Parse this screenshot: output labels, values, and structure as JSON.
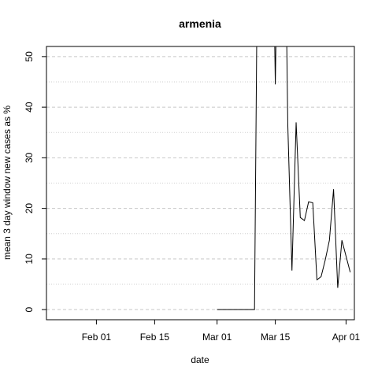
{
  "chart_data": {
    "type": "line",
    "title": "armenia",
    "xlabel": "date",
    "ylabel": "mean  3  day window new cases as %",
    "x_ticks": [
      "Feb 01",
      "Feb 15",
      "Mar 01",
      "Mar 15",
      "Apr 01"
    ],
    "y_ticks": [
      0,
      10,
      20,
      30,
      40,
      50
    ],
    "xlim": [
      "2020-01-20",
      "2020-04-03"
    ],
    "ylim": [
      -2,
      52
    ],
    "grid": true,
    "series": [
      {
        "points": [
          [
            "2020-03-01",
            0
          ],
          [
            "2020-03-02",
            0
          ],
          [
            "2020-03-03",
            0
          ],
          [
            "2020-03-04",
            0
          ],
          [
            "2020-03-05",
            0
          ],
          [
            "2020-03-06",
            0
          ],
          [
            "2020-03-07",
            0
          ],
          [
            "2020-03-08",
            0
          ],
          [
            "2020-03-09",
            0
          ],
          [
            "2020-03-10",
            0
          ],
          [
            "2020-03-11",
            100
          ],
          [
            "2020-03-14",
            100
          ],
          [
            "2020-03-15",
            44.5
          ],
          [
            "2020-03-16",
            100
          ],
          [
            "2020-03-17",
            100
          ],
          [
            "2020-03-18",
            36.5
          ],
          [
            "2020-03-19",
            7.7
          ],
          [
            "2020-03-20",
            37
          ],
          [
            "2020-03-21",
            18.2
          ],
          [
            "2020-03-22",
            17.6
          ],
          [
            "2020-03-23",
            21.3
          ],
          [
            "2020-03-24",
            21.1
          ],
          [
            "2020-03-25",
            5.9
          ],
          [
            "2020-03-26",
            6.5
          ],
          [
            "2020-03-27",
            9.8
          ],
          [
            "2020-03-28",
            13.7
          ],
          [
            "2020-03-29",
            23.8
          ],
          [
            "2020-03-30",
            4.3
          ],
          [
            "2020-03-31",
            13.7
          ],
          [
            "2020-04-02",
            7.4
          ]
        ]
      }
    ]
  }
}
